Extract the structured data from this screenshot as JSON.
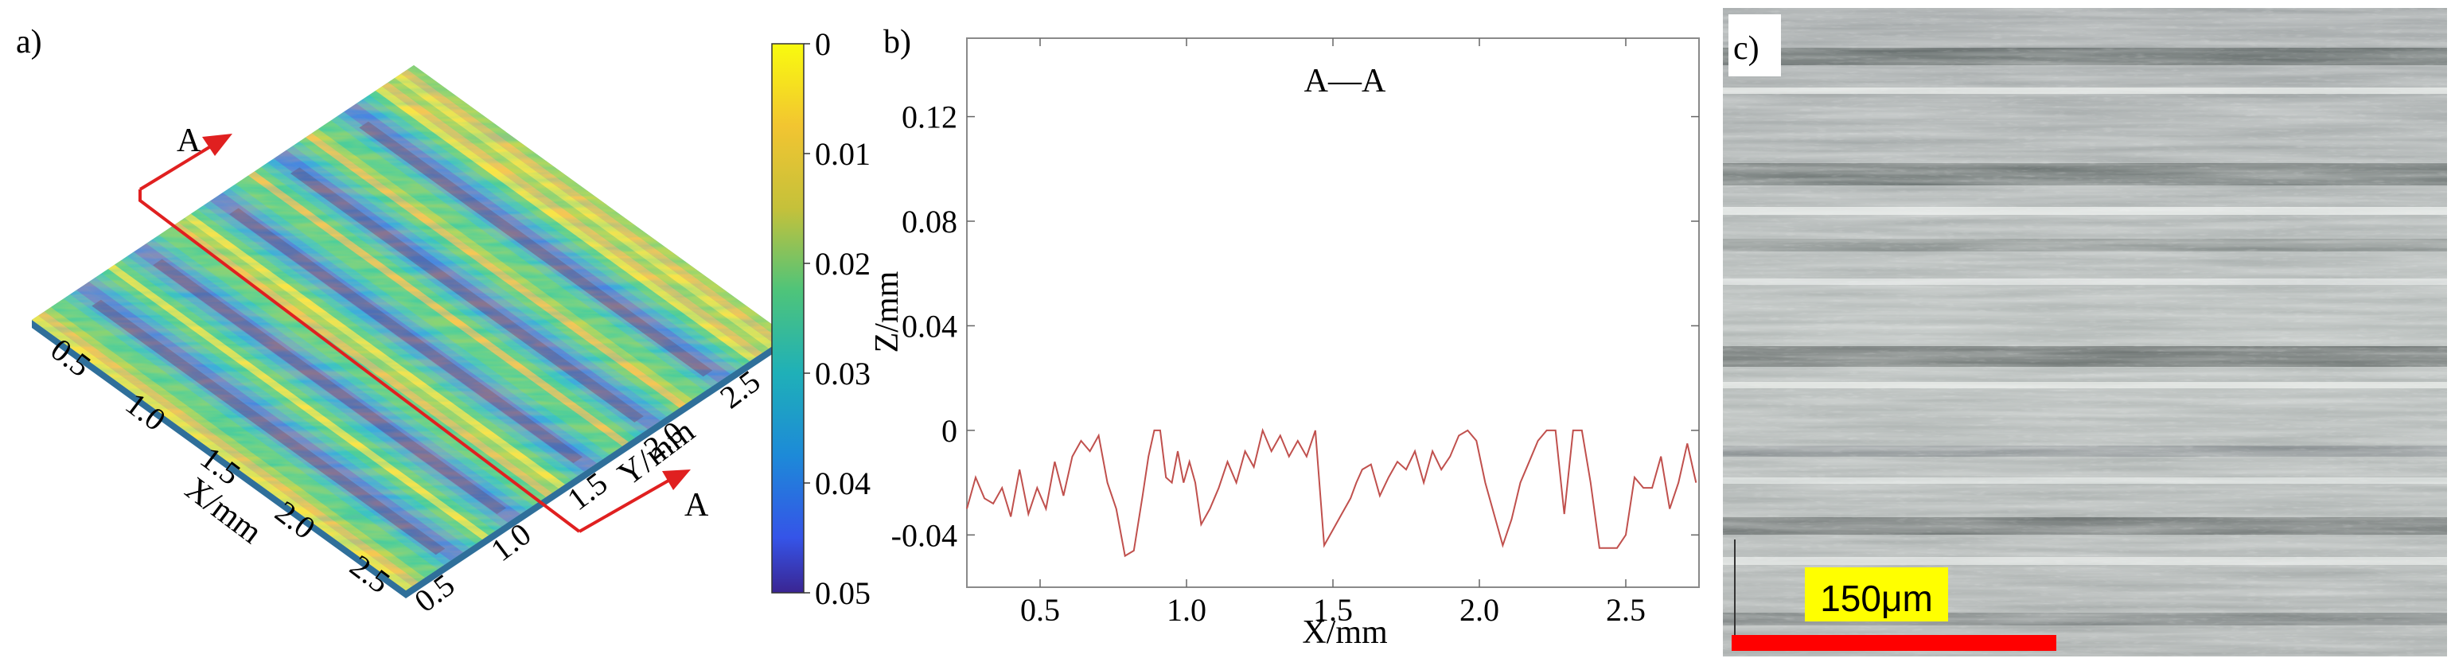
{
  "panels": {
    "a": {
      "label": "a)"
    },
    "b": {
      "label": "b)"
    },
    "c": {
      "label": "c)",
      "scale_bar": {
        "label": "150μm",
        "bar_color": "#ff0000",
        "label_bg": "#ffff00"
      }
    }
  },
  "colors": {
    "profile_line": "#c0504d",
    "section_marker": "#e02020",
    "colormap": [
      "#3b1f8c",
      "#3050e0",
      "#1d8fd8",
      "#1cb5b0",
      "#38c56e",
      "#99cc33",
      "#f2b233",
      "#f9e21f"
    ]
  },
  "chart_data": [
    {
      "id": "a",
      "type": "heatmap",
      "surface": "3d-topography",
      "title": "",
      "xlabel": "X/mm",
      "ylabel": "Y/mm",
      "x_ticks": [
        "0.5",
        "1.0",
        "1.5",
        "2.0",
        "2.5"
      ],
      "y_ticks": [
        "0.5",
        "1.0",
        "1.5",
        "2.0",
        "2.5"
      ],
      "range": [
        0.25,
        2.75
      ],
      "colorbar": {
        "ticks": [
          "0",
          "0.01",
          "0.02",
          "0.03",
          "0.04",
          "0.05"
        ],
        "range": [
          0,
          0.05
        ],
        "reversed": true
      },
      "section": {
        "label_start": "A",
        "label_end": "A"
      },
      "grooves_y": [
        0.55,
        0.95,
        1.45,
        1.85,
        2.3
      ]
    },
    {
      "id": "b",
      "type": "line",
      "title": "A—A",
      "xlabel": "X/mm",
      "ylabel": "Z/mm",
      "xlim": [
        0.25,
        2.75
      ],
      "ylim": [
        -0.06,
        0.15
      ],
      "x_ticks": [
        "0.5",
        "1.0",
        "1.5",
        "2.0",
        "2.5"
      ],
      "y_ticks": [
        "-0.04",
        "0",
        "0.04",
        "0.08",
        "0.12"
      ],
      "grid": false,
      "series": [
        {
          "x": [
            0.25,
            0.28,
            0.31,
            0.34,
            0.37,
            0.4,
            0.43,
            0.46,
            0.49,
            0.52,
            0.55,
            0.58,
            0.61,
            0.64,
            0.67,
            0.7,
            0.73,
            0.76,
            0.79,
            0.82,
            0.85,
            0.87,
            0.89,
            0.91,
            0.93,
            0.95,
            0.97,
            0.99,
            1.01,
            1.03,
            1.05,
            1.08,
            1.11,
            1.14,
            1.17,
            1.2,
            1.23,
            1.26,
            1.29,
            1.32,
            1.35,
            1.38,
            1.41,
            1.44,
            1.47,
            1.5,
            1.53,
            1.56,
            1.58,
            1.6,
            1.63,
            1.66,
            1.69,
            1.72,
            1.75,
            1.78,
            1.81,
            1.84,
            1.87,
            1.9,
            1.93,
            1.96,
            1.99,
            2.02,
            2.05,
            2.08,
            2.11,
            2.14,
            2.17,
            2.2,
            2.23,
            2.26,
            2.29,
            2.32,
            2.35,
            2.38,
            2.41,
            2.44,
            2.47,
            2.5,
            2.53,
            2.56,
            2.59,
            2.62,
            2.65,
            2.68,
            2.71,
            2.74
          ],
          "y": [
            -0.03,
            -0.018,
            -0.026,
            -0.028,
            -0.022,
            -0.033,
            -0.015,
            -0.032,
            -0.022,
            -0.03,
            -0.012,
            -0.025,
            -0.01,
            -0.004,
            -0.008,
            -0.002,
            -0.02,
            -0.03,
            -0.048,
            -0.046,
            -0.025,
            -0.01,
            0.0,
            0.0,
            -0.018,
            -0.02,
            -0.008,
            -0.02,
            -0.012,
            -0.02,
            -0.036,
            -0.03,
            -0.022,
            -0.012,
            -0.02,
            -0.008,
            -0.014,
            0.0,
            -0.008,
            -0.002,
            -0.01,
            -0.004,
            -0.01,
            0.0,
            -0.044,
            -0.038,
            -0.032,
            -0.026,
            -0.02,
            -0.015,
            -0.013,
            -0.025,
            -0.018,
            -0.012,
            -0.015,
            -0.008,
            -0.02,
            -0.008,
            -0.015,
            -0.01,
            -0.002,
            0.0,
            -0.004,
            -0.02,
            -0.032,
            -0.044,
            -0.034,
            -0.02,
            -0.012,
            -0.004,
            0.0,
            0.0,
            -0.032,
            0.0,
            0.0,
            -0.02,
            -0.045,
            -0.045,
            -0.045,
            -0.04,
            -0.018,
            -0.022,
            -0.022,
            -0.01,
            -0.03,
            -0.02,
            -0.005,
            -0.02
          ]
        }
      ]
    }
  ]
}
